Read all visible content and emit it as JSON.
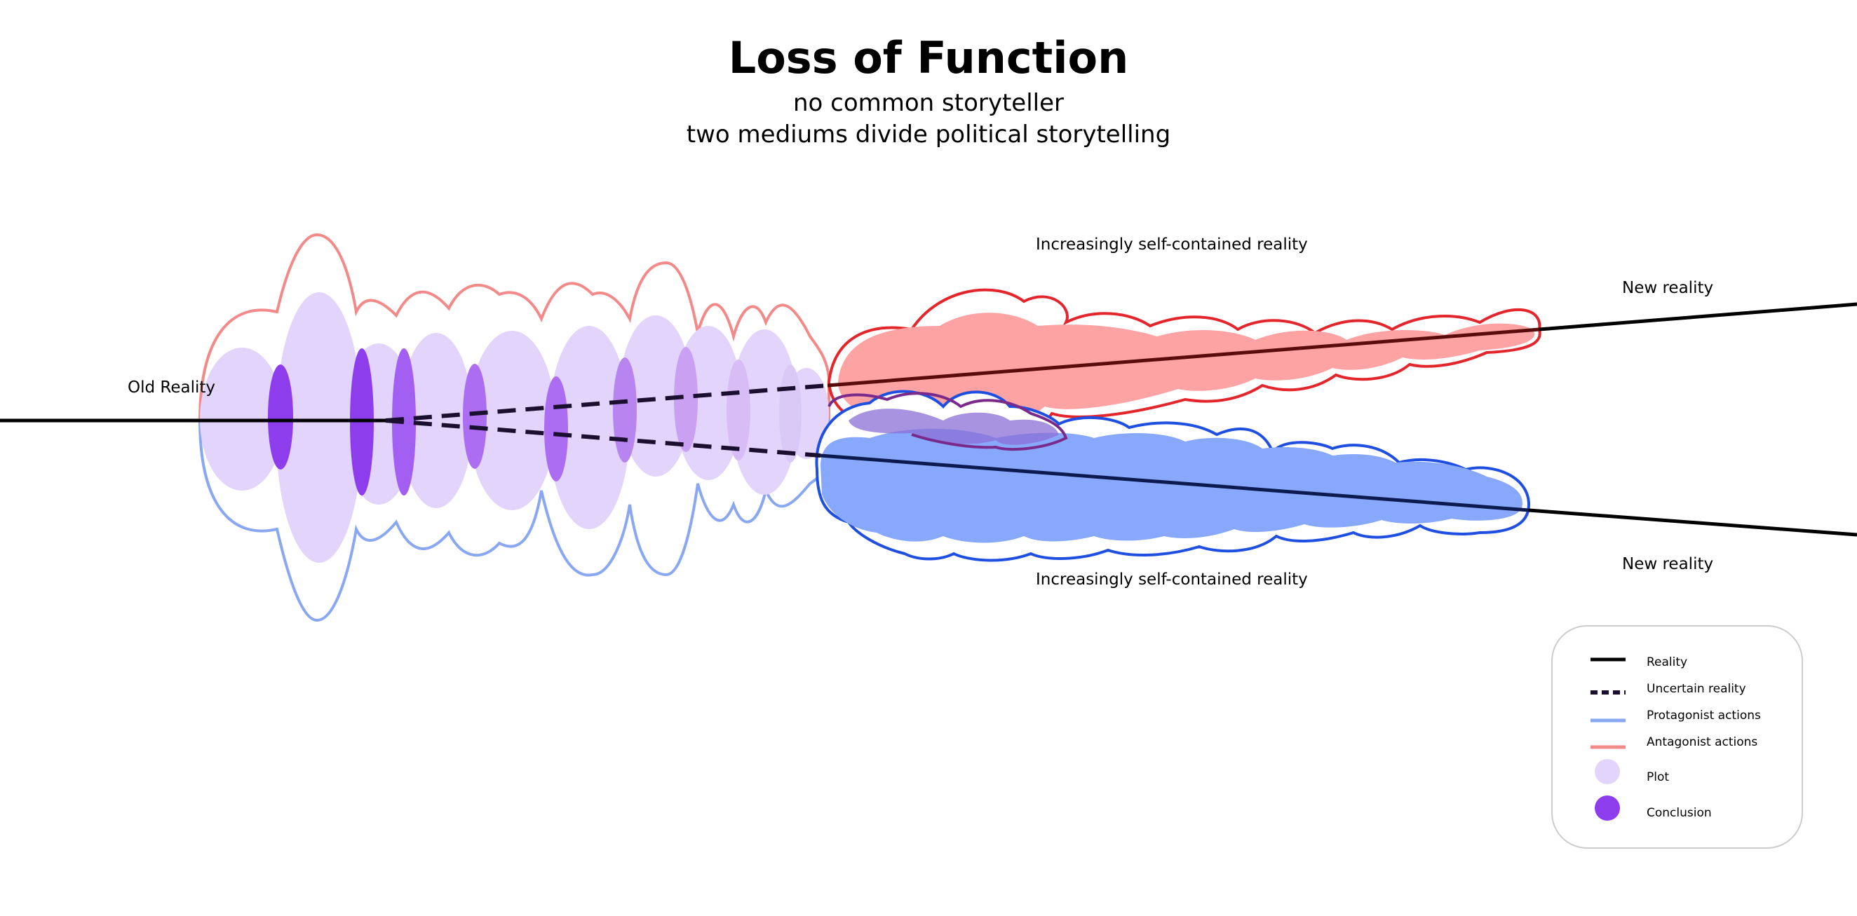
{
  "header": {
    "title": "Loss of Function",
    "subtitle_lines": [
      "no common storyteller",
      "two mediums divide political storytelling"
    ]
  },
  "labels": {
    "old_reality": "Old Reality",
    "upper_self_contained": "Increasingly self-contained reality",
    "lower_self_contained": "Increasingly self-contained reality",
    "upper_new_reality": "New reality",
    "lower_new_reality": "New reality"
  },
  "legend": {
    "items": [
      {
        "label": "Reality",
        "kind": "solid-line",
        "color": "#000000"
      },
      {
        "label": "Uncertain reality",
        "kind": "dashed-line",
        "color": "#1a0f2e"
      },
      {
        "label": "Protagonist actions",
        "kind": "line",
        "color": "#8aa8f2"
      },
      {
        "label": "Antagonist actions",
        "kind": "line",
        "color": "#f28a8a"
      },
      {
        "label": "Plot",
        "kind": "circle",
        "color": "#e2d4fb"
      },
      {
        "label": "Conclusion",
        "kind": "circle",
        "color": "#8e3ded"
      }
    ]
  },
  "colors": {
    "reality": "#000000",
    "uncertain": "#1a0f2e",
    "protagonist_outline": "#8aa8f2",
    "antagonist_outline": "#f28a8a",
    "plot_fill": "#e2d4fb",
    "conclusion_fill": "#8e3ded",
    "upper_bubble_stroke": "#e3262c",
    "upper_bubble_fill": "#fda3a3",
    "lower_bubble_stroke": "#1f4fe0",
    "lower_bubble_fill": "#87a8fb"
  }
}
